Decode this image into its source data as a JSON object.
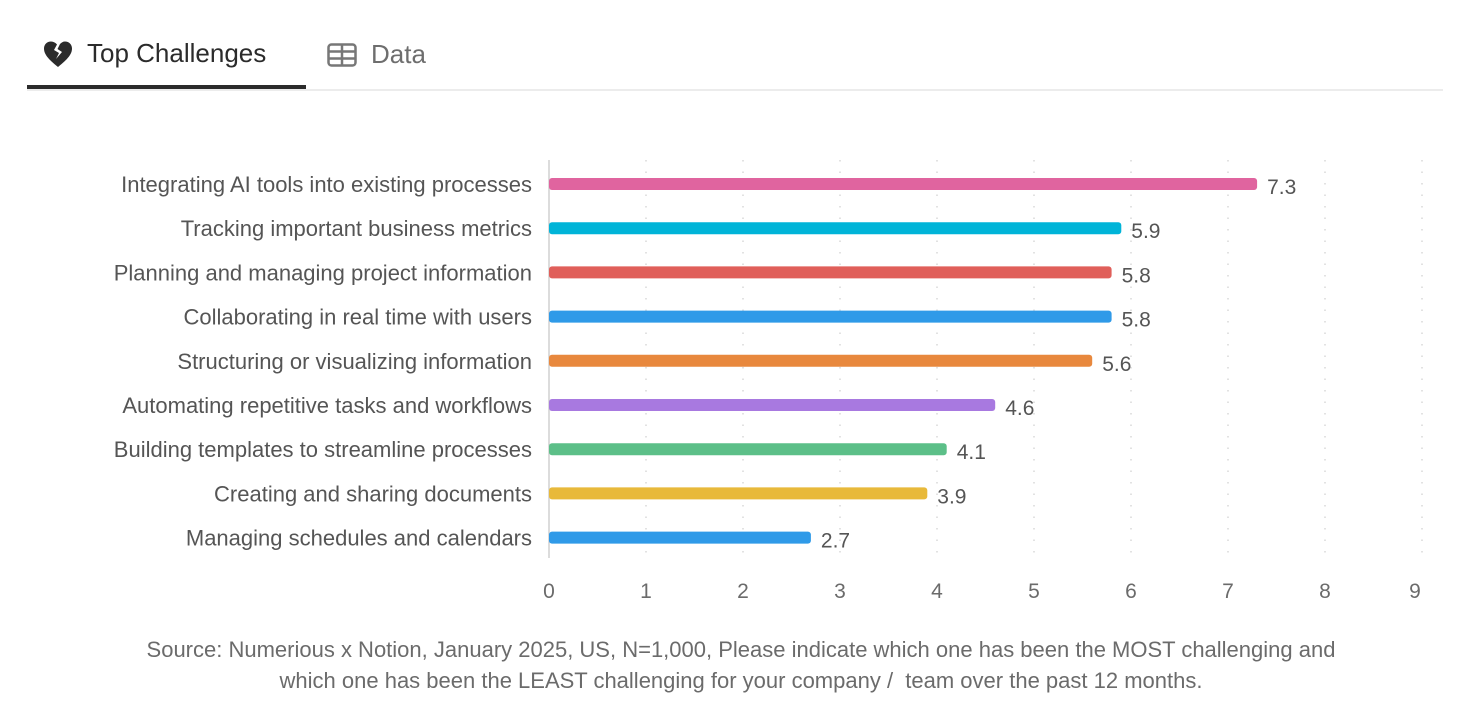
{
  "tabs": [
    {
      "label": "Top Challenges",
      "icon": "broken-heart-icon",
      "active": true
    },
    {
      "label": "Data",
      "icon": "table-icon",
      "active": false
    }
  ],
  "chart_data": {
    "type": "bar",
    "orientation": "horizontal",
    "categories": [
      "Integrating AI tools into existing processes",
      "Tracking important business metrics",
      "Planning and managing project information",
      "Collaborating in real time with users",
      "Structuring or visualizing information",
      "Automating repetitive tasks and workflows",
      "Building templates to streamline processes",
      "Creating and sharing documents",
      "Managing schedules and calendars"
    ],
    "values": [
      7.3,
      5.9,
      5.8,
      5.8,
      5.6,
      4.6,
      4.1,
      3.9,
      2.7
    ],
    "colors": [
      "#e0649f",
      "#00b4d8",
      "#e05f5a",
      "#2f9ae8",
      "#e8883d",
      "#a879e0",
      "#5cbf88",
      "#e8b93a",
      "#2f9ae8"
    ],
    "xlim": [
      0,
      9
    ],
    "xticks": [
      "0",
      "1",
      "2",
      "3",
      "4",
      "5",
      "6",
      "7",
      "8",
      "9"
    ],
    "grid": "vertical dotted",
    "data_labels": true
  },
  "source": {
    "line1": "Source: Numerious x Notion, January 2025, US, N=1,000, Please indicate which one has been the MOST challenging and",
    "line2": "which one has been the LEAST challenging for your company /  team over the past 12 months."
  }
}
